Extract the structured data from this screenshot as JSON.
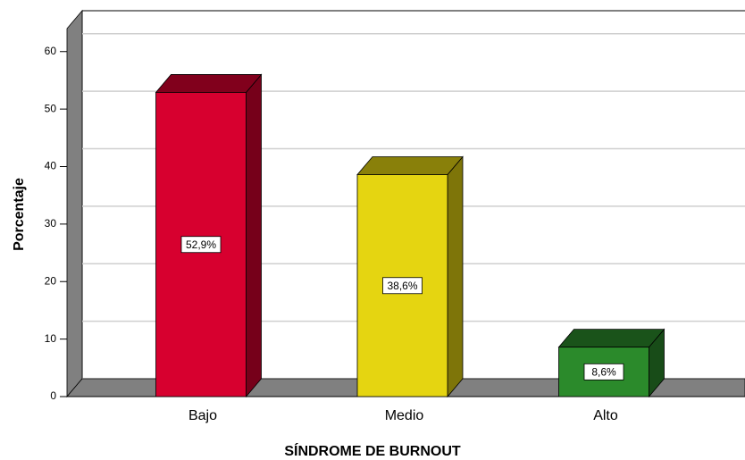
{
  "chart_data": {
    "type": "bar3d",
    "x_label": "SÍNDROME DE BURNOUT",
    "y_label": "Porcentaje",
    "categories": [
      "Bajo",
      "Medio",
      "Alto"
    ],
    "values": [
      52.9,
      38.6,
      8.6
    ],
    "value_labels": [
      "52,9%",
      "38,6%",
      "8,6%"
    ],
    "colors": [
      "#d7002f",
      "#e5d511",
      "#2b8a2b"
    ],
    "ylim": [
      0,
      64
    ],
    "yticks": [
      0,
      10,
      20,
      30,
      40,
      50,
      60
    ],
    "grid": true
  }
}
